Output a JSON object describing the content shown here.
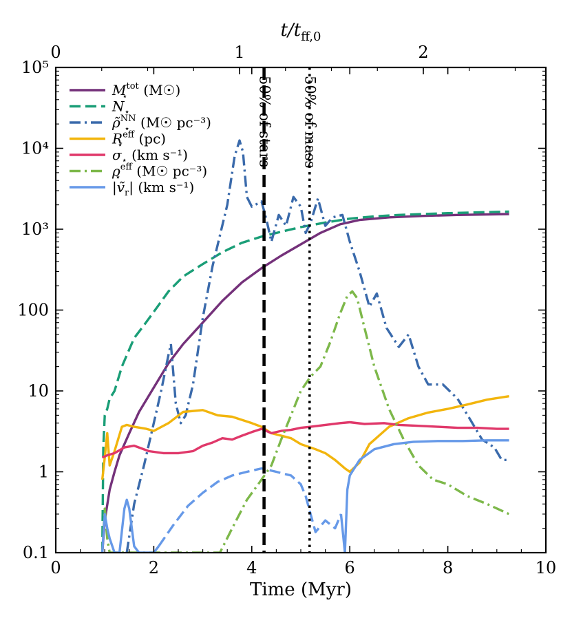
{
  "chart_data": {
    "type": "line",
    "xlabel": "Time (Myr)",
    "top_xlabel": "t/t_ff,0",
    "xlim": [
      0,
      10
    ],
    "ylim": [
      0.1,
      100000
    ],
    "yscale": "log",
    "x_ticks": [
      0,
      2,
      4,
      6,
      8,
      10
    ],
    "x_tick_labels": [
      "0",
      "2",
      "4",
      "6",
      "8",
      "10"
    ],
    "top_ticks_myr": [
      0,
      3.75,
      7.5
    ],
    "top_tick_labels": [
      "0",
      "1",
      "2"
    ],
    "y_ticks": [
      0.1,
      1,
      10,
      100,
      1000,
      10000,
      100000
    ],
    "y_tick_labels": [
      "0.1",
      "1",
      "10",
      "100",
      "10³",
      "10⁴",
      "10⁵"
    ],
    "vlines": [
      {
        "x": 4.25,
        "style": "dashed",
        "label": "50% of stars"
      },
      {
        "x": 5.18,
        "style": "dotted",
        "label": "50% of mass"
      }
    ],
    "legend_position": "top-left",
    "series": [
      {
        "name": "M⋆^tot (M☉)",
        "legend_main": "M",
        "legend_sub": "⋆",
        "legend_sup": "tot",
        "legend_unit": " (M☉)",
        "color": "#74317a",
        "dash": "solid",
        "x": [
          0.95,
          1.0,
          1.1,
          1.2,
          1.3,
          1.5,
          1.7,
          2.0,
          2.3,
          2.6,
          3.0,
          3.4,
          3.8,
          4.2,
          4.6,
          5.0,
          5.4,
          5.8,
          6.2,
          6.8,
          7.5,
          8.2,
          9.25
        ],
        "y": [
          0.1,
          0.25,
          0.6,
          1.0,
          1.6,
          3.0,
          5.5,
          11,
          22,
          38,
          70,
          130,
          220,
          330,
          470,
          650,
          900,
          1150,
          1300,
          1400,
          1460,
          1500,
          1540
        ]
      },
      {
        "name": "N⋆",
        "legend_main": "N",
        "legend_sub": "⋆",
        "legend_sup": "",
        "legend_unit": "",
        "color": "#1a9e77",
        "dash": "dashed",
        "x": [
          0.95,
          0.97,
          1.0,
          1.05,
          1.1,
          1.2,
          1.35,
          1.6,
          1.8,
          2.0,
          2.3,
          2.6,
          3.0,
          3.4,
          3.8,
          4.2,
          4.6,
          5.0,
          5.5,
          6.0,
          6.5,
          7.0,
          8.0,
          9.25
        ],
        "y": [
          0.1,
          2,
          5,
          6,
          8,
          10,
          20,
          45,
          65,
          95,
          170,
          260,
          370,
          520,
          680,
          810,
          930,
          1060,
          1210,
          1350,
          1440,
          1500,
          1580,
          1650
        ]
      },
      {
        "name": "ρ̃⋆^NN (M☉ pc⁻³)",
        "legend_main": "ρ̃",
        "legend_sub": "⋆",
        "legend_sup": "NN",
        "legend_unit": " (M☉ pc⁻³)",
        "color": "#3a6aab",
        "dash": "dashdot",
        "x": [
          1.45,
          1.6,
          1.8,
          2.0,
          2.15,
          2.3,
          2.35,
          2.45,
          2.55,
          2.65,
          2.8,
          3.0,
          3.2,
          3.5,
          3.65,
          3.75,
          3.82,
          3.9,
          4.0,
          4.2,
          4.3,
          4.4,
          4.55,
          4.7,
          4.85,
          5.0,
          5.1,
          5.2,
          5.35,
          5.5,
          5.65,
          5.85,
          6.0,
          6.2,
          6.4,
          6.55,
          6.75,
          7.0,
          7.2,
          7.4,
          7.6,
          7.9,
          8.2,
          8.45,
          8.7,
          8.95,
          9.1,
          9.25
        ],
        "y": [
          0.1,
          0.4,
          1.2,
          4,
          10,
          28,
          38,
          7,
          4,
          5,
          12,
          80,
          350,
          2000,
          8000,
          12500,
          9000,
          2500,
          1900,
          2200,
          1300,
          700,
          1500,
          1100,
          2500,
          1900,
          900,
          1200,
          2400,
          1100,
          1400,
          1500,
          700,
          300,
          110,
          160,
          60,
          35,
          50,
          20,
          12,
          12,
          8,
          4.5,
          2.5,
          2.0,
          1.4,
          1.4
        ]
      },
      {
        "name": "R⋆^eff (pc)",
        "legend_main": "R",
        "legend_sub": "⋆",
        "legend_sup": "eff",
        "legend_unit": " (pc)",
        "color": "#f2b50d",
        "dash": "solid",
        "x": [
          0.95,
          1.0,
          1.05,
          1.1,
          1.2,
          1.35,
          1.45,
          1.6,
          1.85,
          2.0,
          2.3,
          2.6,
          3.0,
          3.3,
          3.6,
          4.0,
          4.2,
          4.4,
          4.8,
          5.0,
          5.3,
          5.5,
          5.7,
          5.9,
          6.0,
          6.2,
          6.4,
          6.8,
          7.2,
          7.6,
          8.0,
          8.4,
          8.8,
          9.25
        ],
        "y": [
          0.8,
          1.5,
          3.0,
          1.2,
          1.8,
          3.6,
          3.8,
          3.6,
          3.4,
          3.2,
          4.0,
          5.5,
          5.8,
          5.0,
          4.8,
          4.0,
          3.6,
          3.0,
          2.6,
          2.2,
          1.9,
          1.7,
          1.4,
          1.1,
          1.0,
          1.3,
          2.2,
          3.6,
          4.6,
          5.4,
          6.0,
          6.8,
          7.8,
          8.6
        ]
      },
      {
        "name": "σ⋆ (km s⁻¹)",
        "legend_main": "σ",
        "legend_sub": "⋆",
        "legend_sup": "",
        "legend_unit": " (km s⁻¹)",
        "color": "#e0386a",
        "dash": "solid",
        "x": [
          0.95,
          1.05,
          1.2,
          1.4,
          1.6,
          1.9,
          2.2,
          2.5,
          2.8,
          3.0,
          3.2,
          3.4,
          3.6,
          3.8,
          4.0,
          4.2,
          4.4,
          4.6,
          4.8,
          5.0,
          5.2,
          5.5,
          5.8,
          6.0,
          6.3,
          6.7,
          7.0,
          7.4,
          7.8,
          8.2,
          8.6,
          9.0,
          9.25
        ],
        "y": [
          1.5,
          1.6,
          1.7,
          2.0,
          2.1,
          1.8,
          1.7,
          1.7,
          1.8,
          2.1,
          2.3,
          2.6,
          2.5,
          2.8,
          3.1,
          3.4,
          3.0,
          3.2,
          3.3,
          3.5,
          3.6,
          3.8,
          4.0,
          4.1,
          3.9,
          4.0,
          3.8,
          3.7,
          3.6,
          3.5,
          3.5,
          3.4,
          3.4
        ]
      },
      {
        "name": "ρ⋆^eff (M☉ pc⁻³)",
        "legend_main": "ρ",
        "legend_sub": "⋆",
        "legend_sup": "eff",
        "legend_unit": " (M☉ pc⁻³)",
        "color": "#7db84a",
        "dash": "dashdot",
        "x": [
          0.95,
          1.0,
          1.05,
          1.1,
          1.2,
          1.3,
          3.35,
          3.6,
          3.9,
          4.2,
          4.4,
          4.6,
          4.8,
          5.0,
          5.2,
          5.4,
          5.6,
          5.8,
          5.95,
          6.05,
          6.15,
          6.3,
          6.5,
          6.8,
          7.1,
          7.4,
          7.7,
          8.0,
          8.4,
          8.8,
          9.25
        ],
        "y": [
          0.1,
          0.35,
          0.15,
          0.1,
          0.1,
          0.1,
          0.1,
          0.2,
          0.45,
          0.8,
          1.2,
          2.5,
          5,
          10,
          15,
          20,
          40,
          90,
          150,
          170,
          140,
          60,
          20,
          6,
          2.5,
          1.2,
          0.8,
          0.7,
          0.5,
          0.4,
          0.3
        ]
      },
      {
        "name": "|ṽr| (km s⁻¹)",
        "legend_main": "|ṽ",
        "legend_sub": "r",
        "legend_sup": "",
        "legend_unit": "| (km s⁻¹)",
        "color": "#6699e8",
        "dash": "mixed",
        "x": [
          0.95,
          1.0,
          1.05,
          1.1,
          1.2,
          1.3,
          1.4,
          1.45,
          1.5,
          1.6,
          1.7,
          2.0,
          2.1,
          2.4,
          2.7,
          3.0,
          3.3,
          3.6,
          3.9,
          4.2,
          4.5,
          4.8,
          5.0,
          5.1,
          5.2,
          5.3,
          5.5,
          5.7,
          5.82,
          5.9,
          5.95,
          6.0,
          6.2,
          6.5,
          6.9,
          7.3,
          7.8,
          8.3,
          8.8,
          9.25
        ],
        "y": [
          0.1,
          0.3,
          0.2,
          0.15,
          0.1,
          0.1,
          0.35,
          0.45,
          0.35,
          0.12,
          0.1,
          0.1,
          0.12,
          0.22,
          0.38,
          0.55,
          0.75,
          0.9,
          1.0,
          1.1,
          1.0,
          0.9,
          0.7,
          0.5,
          0.3,
          0.18,
          0.25,
          0.2,
          0.3,
          0.1,
          0.6,
          0.9,
          1.4,
          1.9,
          2.2,
          2.35,
          2.4,
          2.4,
          2.45,
          2.45
        ],
        "dashed_range": [
          2.1,
          5.82
        ]
      }
    ]
  }
}
